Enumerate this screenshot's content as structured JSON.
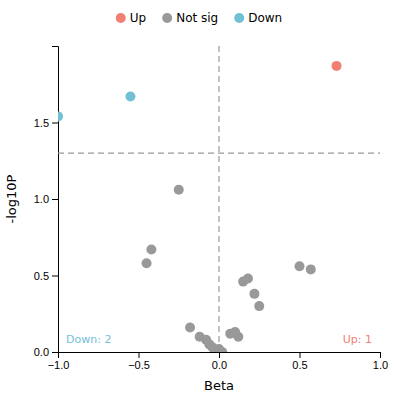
{
  "chart_data": {
    "type": "scatter",
    "xlabel": "Beta",
    "ylabel": "-log10P",
    "xlim": [
      -1.0,
      1.0
    ],
    "ylim": [
      0.0,
      2.0
    ],
    "xticks": [
      {
        "value": -1.0,
        "label": "−1.0"
      },
      {
        "value": -0.5,
        "label": "−0.5"
      },
      {
        "value": 0.0,
        "label": "0.0"
      },
      0.5,
      {
        "value": 1.0,
        "label": "1.0"
      }
    ],
    "yticks": [
      {
        "value": 0.0,
        "label": "0.0"
      },
      0.5,
      {
        "value": 1.0,
        "label": "1.0"
      },
      1.5
    ],
    "grid": false,
    "legend": "top",
    "hlines": [
      1.3
    ],
    "vlines": [
      0.0
    ],
    "series": [
      {
        "name": "Up",
        "color": "#F28072",
        "x": [
          0.73
        ],
        "values": [
          1.87
        ]
      },
      {
        "name": "Not sig",
        "color": "#999999",
        "x": [
          -0.25,
          -0.42,
          -0.45,
          -0.18,
          -0.12,
          -0.08,
          -0.06,
          -0.04,
          -0.02,
          0.0,
          0.02,
          0.07,
          0.1,
          0.12,
          0.15,
          0.18,
          0.22,
          0.25,
          0.5,
          0.57
        ],
        "values": [
          1.06,
          0.67,
          0.58,
          0.16,
          0.1,
          0.08,
          0.05,
          0.03,
          0.01,
          0.02,
          0.0,
          0.12,
          0.13,
          0.1,
          0.46,
          0.48,
          0.38,
          0.3,
          0.56,
          0.54
        ]
      },
      {
        "name": "Down",
        "color": "#72C0D6",
        "x": [
          -1.0,
          -0.55
        ],
        "values": [
          1.54,
          1.67
        ]
      }
    ],
    "annotations": [
      {
        "text": "Down: 2",
        "x": -0.95,
        "y": 0.04,
        "color": "#72C0D6"
      },
      {
        "text": "Up: 1",
        "x": 0.95,
        "y": 0.04,
        "color": "#F28072"
      }
    ]
  }
}
